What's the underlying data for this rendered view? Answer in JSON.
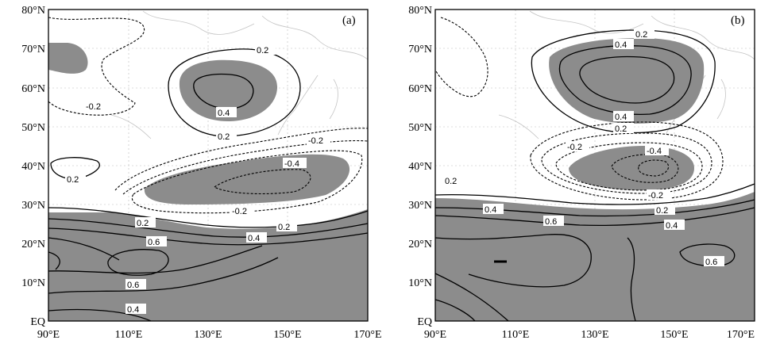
{
  "panels": [
    {
      "id": "a",
      "label": "(a)"
    },
    {
      "id": "b",
      "label": "(b)"
    }
  ],
  "axes": {
    "lat_ticks": [
      "80°N",
      "70°N",
      "60°N",
      "50°N",
      "40°N",
      "30°N",
      "20°N",
      "10°N",
      "EQ"
    ],
    "lon_ticks": [
      "90°E",
      "110°E",
      "130°E",
      "150°E",
      "170°E"
    ]
  },
  "contour_labels": {
    "a": [
      "0.2",
      "-0.2",
      "0.4",
      "0.2",
      "-0.2",
      "-0.4",
      "0.2",
      "-0.2",
      "0.2",
      "0.2",
      "0.6",
      "0.4",
      "0.6",
      "0.4"
    ],
    "b": [
      "0.2",
      "0.4",
      "0.4",
      "0.2",
      "-0.2",
      "-0.4",
      "0.2",
      "-0.2",
      "0.4",
      "0.2",
      "0.6",
      "0.4",
      "0.6"
    ]
  },
  "colors": {
    "shading": "#8c8c8c",
    "contour": "#000000",
    "coastline": "#c4c4c4"
  }
}
